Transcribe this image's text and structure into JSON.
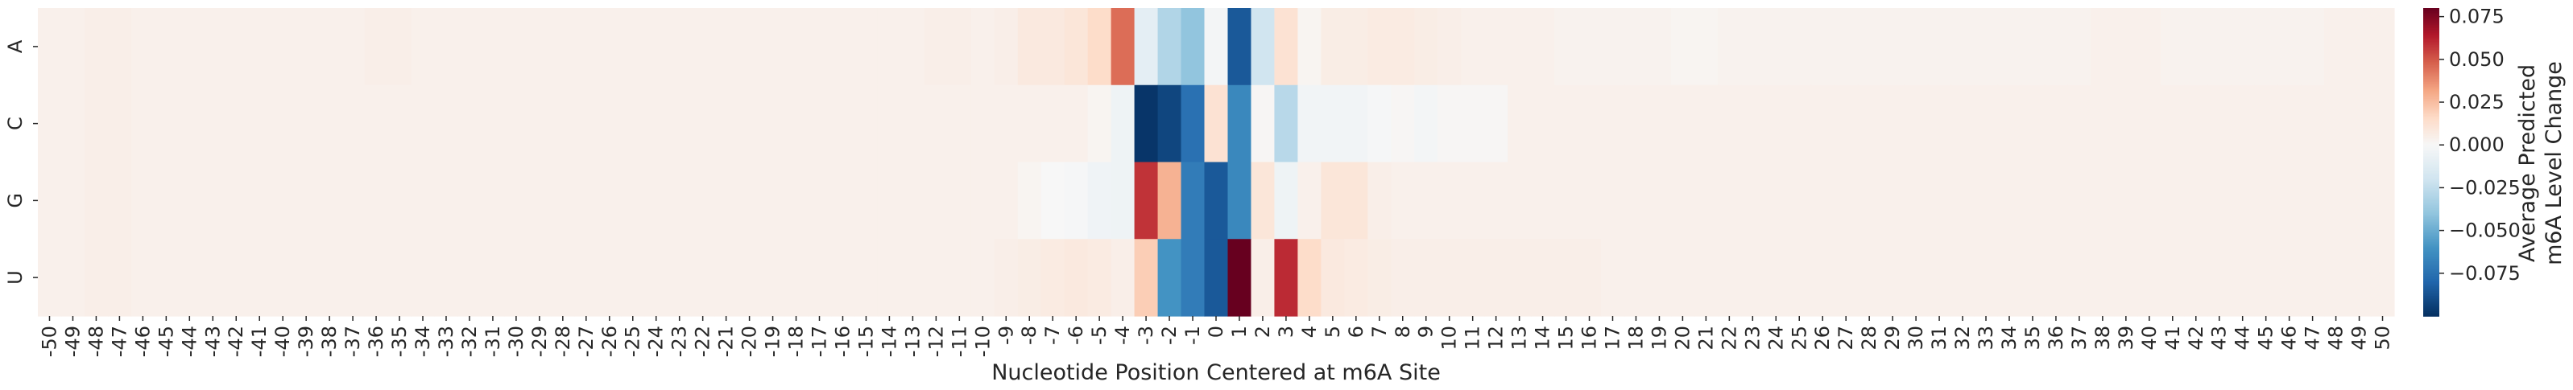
{
  "chart_data": {
    "type": "heatmap",
    "xlabel": "Nucleotide Position Centered at m6A Site",
    "ylabel": "",
    "colorbar_label_lines": [
      "Average Predicted",
      "m6A Level Change"
    ],
    "rows": [
      "A",
      "C",
      "G",
      "U"
    ],
    "columns": [
      -50,
      -49,
      -48,
      -47,
      -46,
      -45,
      -44,
      -43,
      -42,
      -41,
      -40,
      -39,
      -38,
      -37,
      -36,
      -35,
      -34,
      -33,
      -32,
      -31,
      -30,
      -29,
      -28,
      -27,
      -26,
      -25,
      -24,
      -23,
      -22,
      -21,
      -20,
      -19,
      -18,
      -17,
      -16,
      -15,
      -14,
      -13,
      -12,
      -11,
      -10,
      -9,
      -8,
      -7,
      -6,
      -5,
      -4,
      -3,
      -2,
      -1,
      0,
      1,
      2,
      3,
      4,
      5,
      6,
      7,
      8,
      9,
      10,
      11,
      12,
      13,
      14,
      15,
      16,
      17,
      18,
      19,
      20,
      21,
      22,
      23,
      24,
      25,
      26,
      27,
      28,
      29,
      30,
      31,
      32,
      33,
      34,
      35,
      36,
      37,
      38,
      39,
      40,
      41,
      42,
      43,
      44,
      45,
      46,
      47,
      48,
      49,
      50
    ],
    "values": [
      [
        0.004,
        0.004,
        0.005,
        0.005,
        0.004,
        0.004,
        0.004,
        0.004,
        0.004,
        0.004,
        0.004,
        0.004,
        0.004,
        0.004,
        0.005,
        0.005,
        0.004,
        0.004,
        0.004,
        0.004,
        0.004,
        0.004,
        0.004,
        0.004,
        0.004,
        0.004,
        0.004,
        0.004,
        0.004,
        0.004,
        0.004,
        0.004,
        0.004,
        0.004,
        0.004,
        0.004,
        0.004,
        0.004,
        0.005,
        0.005,
        0.004,
        0.005,
        0.008,
        0.008,
        0.01,
        0.015,
        0.045,
        -0.01,
        -0.03,
        -0.04,
        -0.002,
        -0.085,
        -0.02,
        0.012,
        0.002,
        0.006,
        0.006,
        0.007,
        0.007,
        0.006,
        0.005,
        0.004,
        0.004,
        0.004,
        0.004,
        0.003,
        0.003,
        0.003,
        0.003,
        0.003,
        0.002,
        0.002,
        0.003,
        0.003,
        0.003,
        0.003,
        0.003,
        0.003,
        0.003,
        0.003,
        0.003,
        0.003,
        0.003,
        0.003,
        0.003,
        0.003,
        0.003,
        0.003,
        0.004,
        0.004,
        0.004,
        0.003,
        0.003,
        0.003,
        0.003,
        0.003,
        0.003,
        0.003,
        0.004,
        0.004,
        0.004
      ],
      [
        0.004,
        0.004,
        0.005,
        0.005,
        0.004,
        0.004,
        0.004,
        0.004,
        0.004,
        0.004,
        0.004,
        0.004,
        0.004,
        0.004,
        0.004,
        0.004,
        0.004,
        0.004,
        0.004,
        0.004,
        0.004,
        0.004,
        0.004,
        0.004,
        0.004,
        0.004,
        0.004,
        0.004,
        0.004,
        0.004,
        0.004,
        0.004,
        0.004,
        0.004,
        0.004,
        0.004,
        0.004,
        0.004,
        0.004,
        0.004,
        0.004,
        0.004,
        0.004,
        0.004,
        0.004,
        0.002,
        -0.005,
        -0.098,
        -0.092,
        -0.075,
        0.012,
        -0.065,
        0.001,
        -0.028,
        -0.003,
        -0.003,
        -0.003,
        -0.001,
        0.001,
        -0.002,
        0.001,
        0.001,
        0.001,
        0.004,
        0.004,
        0.004,
        0.004,
        0.004,
        0.004,
        0.004,
        0.004,
        0.004,
        0.004,
        0.004,
        0.004,
        0.004,
        0.004,
        0.004,
        0.004,
        0.004,
        0.004,
        0.004,
        0.004,
        0.004,
        0.004,
        0.004,
        0.004,
        0.004,
        0.004,
        0.004,
        0.004,
        0.004,
        0.004,
        0.004,
        0.004,
        0.004,
        0.004,
        0.004,
        0.004,
        0.004,
        0.004
      ],
      [
        0.004,
        0.004,
        0.005,
        0.005,
        0.004,
        0.004,
        0.004,
        0.004,
        0.004,
        0.004,
        0.004,
        0.004,
        0.004,
        0.004,
        0.004,
        0.004,
        0.004,
        0.004,
        0.004,
        0.004,
        0.004,
        0.004,
        0.004,
        0.004,
        0.004,
        0.004,
        0.004,
        0.004,
        0.004,
        0.004,
        0.004,
        0.004,
        0.004,
        0.004,
        0.004,
        0.004,
        0.004,
        0.004,
        0.004,
        0.004,
        0.004,
        0.004,
        0.002,
        0.0,
        -0.001,
        -0.004,
        -0.005,
        0.058,
        0.028,
        -0.07,
        -0.085,
        -0.065,
        0.01,
        -0.005,
        0.004,
        0.01,
        0.01,
        0.005,
        0.004,
        0.004,
        0.004,
        0.004,
        0.004,
        0.004,
        0.004,
        0.004,
        0.004,
        0.004,
        0.004,
        0.004,
        0.004,
        0.004,
        0.004,
        0.004,
        0.004,
        0.004,
        0.004,
        0.004,
        0.004,
        0.004,
        0.004,
        0.004,
        0.004,
        0.004,
        0.004,
        0.004,
        0.004,
        0.004,
        0.004,
        0.004,
        0.004,
        0.004,
        0.004,
        0.004,
        0.004,
        0.004,
        0.004,
        0.004,
        0.004,
        0.004,
        0.004
      ],
      [
        0.004,
        0.004,
        0.005,
        0.005,
        0.004,
        0.004,
        0.004,
        0.004,
        0.004,
        0.004,
        0.004,
        0.004,
        0.004,
        0.004,
        0.004,
        0.004,
        0.004,
        0.004,
        0.004,
        0.004,
        0.004,
        0.004,
        0.004,
        0.004,
        0.004,
        0.004,
        0.004,
        0.004,
        0.004,
        0.004,
        0.004,
        0.004,
        0.004,
        0.004,
        0.004,
        0.004,
        0.004,
        0.004,
        0.004,
        0.004,
        0.004,
        0.005,
        0.006,
        0.007,
        0.008,
        0.007,
        0.005,
        0.02,
        -0.06,
        -0.07,
        -0.085,
        0.085,
        0.005,
        0.06,
        0.015,
        0.008,
        0.007,
        0.006,
        0.005,
        0.005,
        0.005,
        0.005,
        0.005,
        0.005,
        0.005,
        0.005,
        0.005,
        0.004,
        0.004,
        0.004,
        0.004,
        0.004,
        0.004,
        0.004,
        0.004,
        0.004,
        0.004,
        0.004,
        0.004,
        0.004,
        0.004,
        0.004,
        0.004,
        0.004,
        0.004,
        0.004,
        0.004,
        0.004,
        0.004,
        0.004,
        0.004,
        0.004,
        0.004,
        0.004,
        0.004,
        0.004,
        0.004,
        0.004,
        0.004,
        0.004,
        0.004
      ]
    ],
    "color_scale": {
      "vmin": -0.1,
      "vmax": 0.08,
      "center": 0.0,
      "colormap": "RdBu_r"
    },
    "colorbar_ticks": [
      0.075,
      0.05,
      0.025,
      0.0,
      -0.025,
      -0.05,
      -0.075
    ],
    "colorbar_tick_labels": [
      "0.075",
      "0.050",
      "0.025",
      "0.000",
      "−0.025",
      "−0.050",
      "−0.075"
    ],
    "colorbar_position": "right",
    "grid": false
  }
}
